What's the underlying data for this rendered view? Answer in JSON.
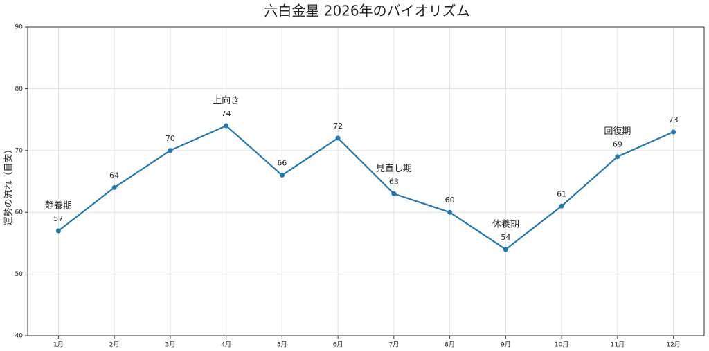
{
  "chart_data": {
    "type": "line",
    "title": "六白金星 2026年のバイオリズム",
    "y_label": "運勢の流れ（目安）",
    "categories": [
      "1月",
      "2月",
      "3月",
      "4月",
      "5月",
      "6月",
      "7月",
      "8月",
      "9月",
      "10月",
      "11月",
      "12月"
    ],
    "series": [
      {
        "name": "運勢",
        "color": "#1f77b4",
        "values": [
          57,
          64,
          70,
          74,
          66,
          72,
          63,
          60,
          54,
          61,
          69,
          73
        ]
      }
    ],
    "ylim": [
      40,
      90
    ],
    "yticks": [
      40,
      50,
      60,
      70,
      80,
      90
    ],
    "grid": true,
    "annotations": [
      {
        "text": "静養期",
        "category": "1月"
      },
      {
        "text": "上向き",
        "category": "4月"
      },
      {
        "text": "見直し期",
        "category": "7月"
      },
      {
        "text": "休養期",
        "category": "9月"
      },
      {
        "text": "回復期",
        "category": "11月"
      }
    ]
  }
}
